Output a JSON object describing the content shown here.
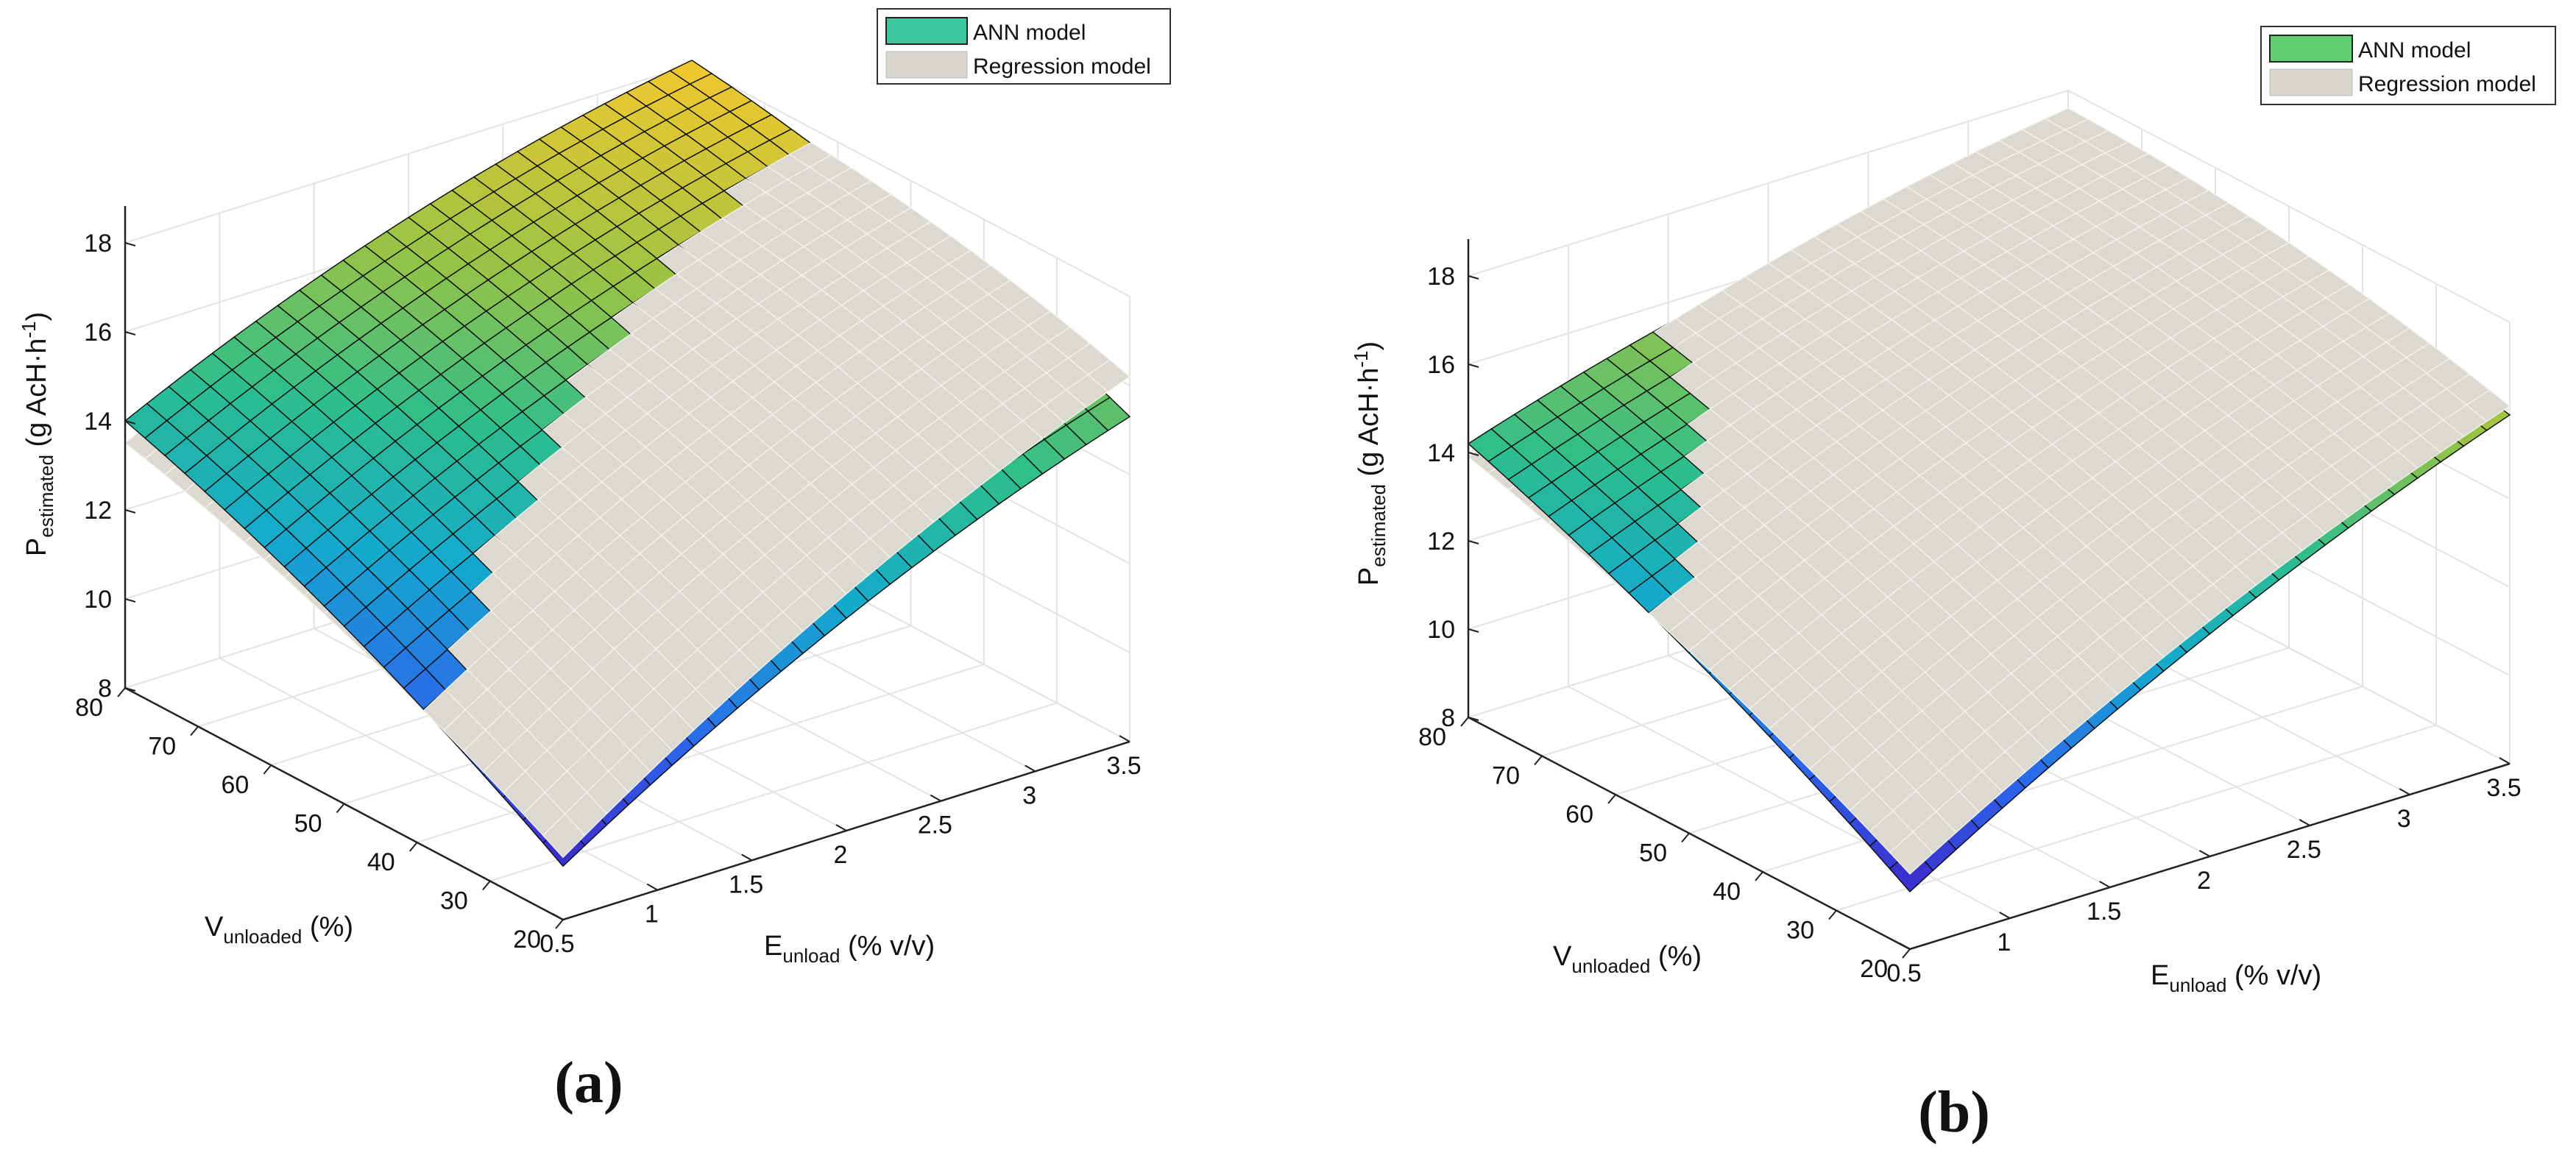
{
  "chart_data": [
    {
      "type": "surface3d",
      "panel_label": "(a)",
      "xlabel": {
        "main": "E",
        "sub": "unload",
        "rest": " (% v/v)"
      },
      "ylabel": {
        "main": "V",
        "sub": "unloaded",
        "rest": " (%)"
      },
      "zlabel": {
        "main": "P",
        "sub": "estimated",
        "rest": " (g AcH·h",
        "sup": "-1",
        "end": ")"
      },
      "xticks": [
        "0.5",
        "1",
        "1.5",
        "2",
        "2.5",
        "3",
        "3.5"
      ],
      "yticks": [
        "20",
        "30",
        "40",
        "50",
        "60",
        "70",
        "80"
      ],
      "zticks": [
        "8",
        "10",
        "12",
        "14",
        "16",
        "18"
      ],
      "xlim": [
        0.5,
        3.5
      ],
      "ylim": [
        20,
        80
      ],
      "zlim": [
        8,
        18
      ],
      "legend": [
        "ANN model",
        "Regression model"
      ],
      "legend_colors": [
        "#3ec79e",
        "#d9d6cf"
      ],
      "series": [
        {
          "name": "ANN model",
          "corners": {
            "E0.5_V20": 9.2,
            "E0.5_V80": 14.0,
            "E3.5_V20": 15.3,
            "E3.5_V80": 18.1
          }
        },
        {
          "name": "Regression model",
          "corners": {
            "E0.5_V20": 9.4,
            "E0.5_V80": 13.5,
            "E3.5_V20": 16.2,
            "E3.5_V80": 17.8
          }
        }
      ]
    },
    {
      "type": "surface3d",
      "panel_label": "(b)",
      "xlabel": {
        "main": "E",
        "sub": "unload",
        "rest": " (% v/v)"
      },
      "ylabel": {
        "main": "V",
        "sub": "unloaded",
        "rest": " (%)"
      },
      "zlabel": {
        "main": "P",
        "sub": "estimated",
        "rest": " (g AcH·h",
        "sup": "-1",
        "end": ")"
      },
      "xticks": [
        "0.5",
        "1",
        "1.5",
        "2",
        "2.5",
        "3",
        "3.5"
      ],
      "yticks": [
        "20",
        "30",
        "40",
        "50",
        "60",
        "70",
        "80"
      ],
      "zticks": [
        "8",
        "10",
        "12",
        "14",
        "16",
        "18"
      ],
      "xlim": [
        0.5,
        3.5
      ],
      "ylim": [
        20,
        80
      ],
      "zlim": [
        8,
        18
      ],
      "legend": [
        "ANN model",
        "Regression model"
      ],
      "legend_colors": [
        "#62cf6e",
        "#d9d6cf"
      ],
      "series": [
        {
          "name": "ANN model",
          "corners": {
            "E0.5_V20": 9.3,
            "E0.5_V80": 14.2,
            "E3.5_V20": 15.9,
            "E3.5_V80": 17.0
          }
        },
        {
          "name": "Regression model",
          "corners": {
            "E0.5_V20": 9.7,
            "E0.5_V80": 13.9,
            "E3.5_V20": 16.1,
            "E3.5_V80": 17.6
          }
        }
      ]
    }
  ]
}
